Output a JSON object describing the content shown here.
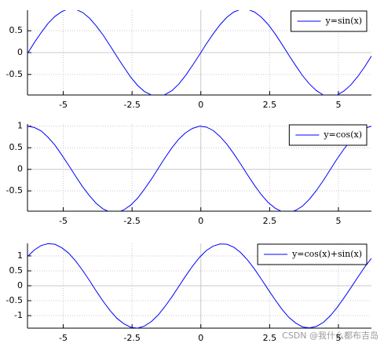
{
  "chart_data": [
    {
      "type": "line",
      "grid": true,
      "legend": "top-right",
      "x": [
        -6.3,
        -6.05,
        -5.8,
        -5.55,
        -5.3,
        -5.05,
        -4.8,
        -4.55,
        -4.3,
        -4.05,
        -3.8,
        -3.55,
        -3.3,
        -3.05,
        -2.8,
        -2.55,
        -2.3,
        -2.05,
        -1.8,
        -1.55,
        -1.3,
        -1.05,
        -0.8,
        -0.55,
        -0.3,
        -0.05,
        0.2,
        0.45,
        0.7,
        0.95,
        1.2,
        1.45,
        1.7,
        1.95,
        2.2,
        2.45,
        2.7,
        2.95,
        3.2,
        3.45,
        3.7,
        3.95,
        4.2,
        4.45,
        4.7,
        4.95,
        5.2,
        5.45,
        5.7,
        5.95,
        6.2
      ],
      "series": [
        {
          "name": "y=sin(x)",
          "color": "#0000ff",
          "values": [
            -0.02,
            0.23,
            0.46,
            0.67,
            0.83,
            0.94,
            1.0,
            0.99,
            0.92,
            0.79,
            0.61,
            0.4,
            0.16,
            -0.09,
            -0.33,
            -0.56,
            -0.75,
            -0.89,
            -0.97,
            -1.0,
            -0.96,
            -0.87,
            -0.72,
            -0.52,
            -0.29,
            -0.05,
            0.2,
            0.43,
            0.64,
            0.81,
            0.93,
            0.99,
            0.99,
            0.93,
            0.81,
            0.64,
            0.43,
            0.19,
            -0.06,
            -0.3,
            -0.53,
            -0.72,
            -0.87,
            -0.97,
            -1.0,
            -0.97,
            -0.88,
            -0.74,
            -0.55,
            -0.33,
            -0.08
          ]
        }
      ],
      "xlim": [
        -6.3,
        6.2
      ],
      "xticks": [
        -5,
        -2.5,
        0,
        2.5,
        5
      ],
      "ylim": [
        -0.97,
        0.97
      ],
      "yticks": [
        -0.5,
        0,
        0.5
      ]
    },
    {
      "type": "line",
      "grid": true,
      "legend": "top-right",
      "x": [
        -6.3,
        -6.05,
        -5.8,
        -5.55,
        -5.3,
        -5.05,
        -4.8,
        -4.55,
        -4.3,
        -4.05,
        -3.8,
        -3.55,
        -3.3,
        -3.05,
        -2.8,
        -2.55,
        -2.3,
        -2.05,
        -1.8,
        -1.55,
        -1.3,
        -1.05,
        -0.8,
        -0.55,
        -0.3,
        -0.05,
        0.2,
        0.45,
        0.7,
        0.95,
        1.2,
        1.45,
        1.7,
        1.95,
        2.2,
        2.45,
        2.7,
        2.95,
        3.2,
        3.45,
        3.7,
        3.95,
        4.2,
        4.45,
        4.7,
        4.95,
        5.2,
        5.45,
        5.7,
        5.95,
        6.2
      ],
      "series": [
        {
          "name": "y=cos(x)",
          "color": "#0000ff",
          "values": [
            1.0,
            0.97,
            0.89,
            0.74,
            0.56,
            0.33,
            0.09,
            -0.16,
            -0.4,
            -0.61,
            -0.79,
            -0.92,
            -0.99,
            -1.0,
            -0.94,
            -0.83,
            -0.67,
            -0.46,
            -0.23,
            0.02,
            0.27,
            0.5,
            0.7,
            0.85,
            0.95,
            1.0,
            0.98,
            0.9,
            0.76,
            0.58,
            0.36,
            0.12,
            -0.13,
            -0.37,
            -0.59,
            -0.77,
            -0.9,
            -0.98,
            -1.0,
            -0.95,
            -0.85,
            -0.69,
            -0.49,
            -0.26,
            -0.01,
            0.24,
            0.47,
            0.67,
            0.83,
            0.95,
            1.0
          ]
        }
      ],
      "xlim": [
        -6.3,
        6.2
      ],
      "xticks": [
        -5,
        -2.5,
        0,
        2.5,
        5
      ],
      "ylim": [
        -0.97,
        1.05
      ],
      "yticks": [
        -0.5,
        0,
        0.5,
        1
      ]
    },
    {
      "type": "line",
      "grid": true,
      "legend": "top-right",
      "x": [
        -6.3,
        -6.05,
        -5.8,
        -5.55,
        -5.3,
        -5.05,
        -4.8,
        -4.55,
        -4.3,
        -4.05,
        -3.8,
        -3.55,
        -3.3,
        -3.05,
        -2.8,
        -2.55,
        -2.3,
        -2.05,
        -1.8,
        -1.55,
        -1.3,
        -1.05,
        -0.8,
        -0.55,
        -0.3,
        -0.05,
        0.2,
        0.45,
        0.7,
        0.95,
        1.2,
        1.45,
        1.7,
        1.95,
        2.2,
        2.45,
        2.7,
        2.95,
        3.2,
        3.45,
        3.7,
        3.95,
        4.2,
        4.45,
        4.7,
        4.95,
        5.2,
        5.45,
        5.7,
        5.95,
        6.2
      ],
      "series": [
        {
          "name": "y=cos(x)+sin(x)",
          "color": "#0000ff",
          "values": [
            0.98,
            1.2,
            1.35,
            1.41,
            1.39,
            1.27,
            1.09,
            0.83,
            0.52,
            0.18,
            -0.18,
            -0.52,
            -0.83,
            -1.09,
            -1.27,
            -1.39,
            -1.42,
            -1.35,
            -1.2,
            -0.98,
            -0.69,
            -0.37,
            -0.02,
            0.33,
            0.66,
            0.95,
            1.18,
            1.33,
            1.4,
            1.39,
            1.29,
            1.11,
            0.86,
            0.56,
            0.22,
            -0.13,
            -0.47,
            -0.79,
            -1.06,
            -1.25,
            -1.38,
            -1.41,
            -1.36,
            -1.23,
            -1.01,
            -0.73,
            -0.41,
            -0.07,
            0.28,
            0.62,
            0.92
          ]
        }
      ],
      "xlim": [
        -6.3,
        6.2
      ],
      "xticks": [
        -5,
        -2.5,
        0,
        2.5,
        5
      ],
      "ylim": [
        -1.42,
        1.42
      ],
      "yticks": [
        -1,
        -0.5,
        0,
        0.5,
        1
      ]
    }
  ],
  "watermark": "CSDN @我什么都布吉岛"
}
